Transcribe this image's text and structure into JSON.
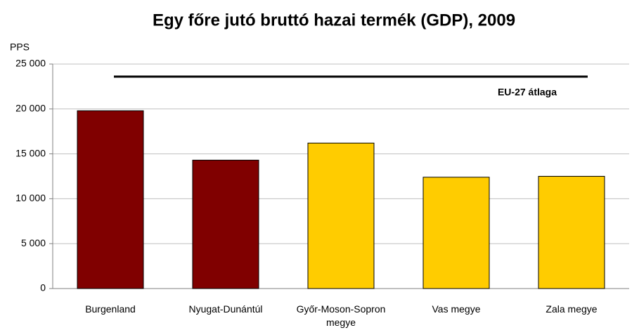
{
  "chart_data": {
    "type": "bar",
    "title": "Egy főre jutó bruttó hazai termék (GDP), 2009",
    "y_axis_label": "PPS",
    "categories": [
      "Burgenland",
      "Nyugat-Dunántúl",
      "Győr-Moson-Sopron megye",
      "Vas megye",
      "Zala megye"
    ],
    "values": [
      19800,
      14300,
      16200,
      12400,
      12500
    ],
    "colors": [
      "#800000",
      "#800000",
      "#ffcc00",
      "#ffcc00",
      "#ffcc00"
    ],
    "ylim": [
      0,
      25000
    ],
    "yticks": [
      0,
      {
        "value": 5000,
        "label": "5 000"
      },
      {
        "value": 10000,
        "label": "10 000"
      },
      {
        "value": 15000,
        "label": "15 000"
      },
      {
        "value": 20000,
        "label": "20 000"
      },
      {
        "value": 25000,
        "label": "25 000"
      }
    ],
    "grid": true,
    "reference_line": {
      "value": 23600,
      "label": "EU-27 átlaga"
    }
  }
}
